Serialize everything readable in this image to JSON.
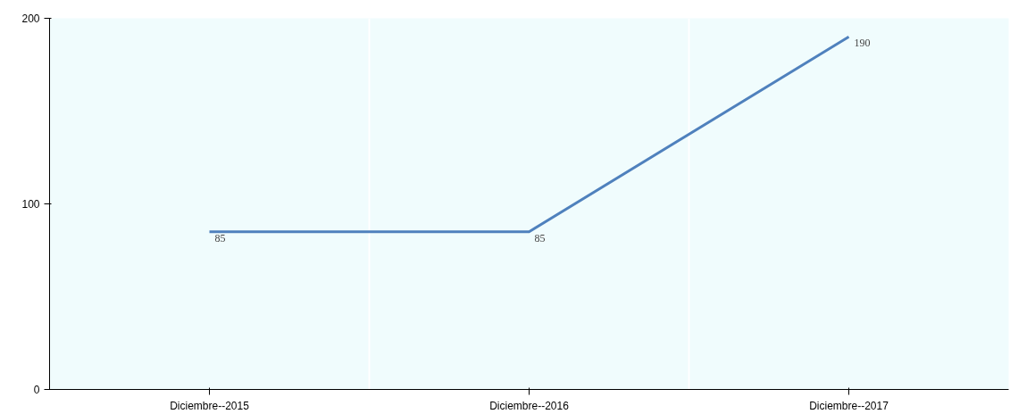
{
  "chart_data": {
    "type": "line",
    "categories": [
      "Diciembre--2015",
      "Diciembre--2016",
      "Diciembre--2017"
    ],
    "series": [
      {
        "color": "#4f81bd",
        "values": [
          85,
          85,
          190
        ]
      }
    ],
    "ylim": [
      0,
      200
    ],
    "yticks": [
      0,
      100,
      200
    ],
    "grid": "x",
    "data_labels": true,
    "marker": "none",
    "line_style": "solid"
  }
}
